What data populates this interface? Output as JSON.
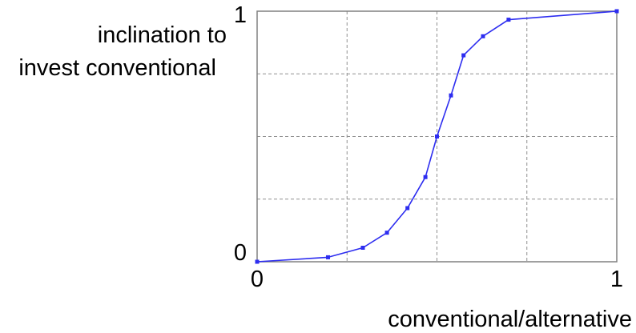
{
  "chart_data": {
    "type": "line",
    "title": "",
    "ylabel_lines": [
      "inclination to",
      "invest conventional"
    ],
    "xlabel": "conventional/alternative",
    "xlim": [
      0,
      1
    ],
    "ylim": [
      0,
      1
    ],
    "x_tick_labels": [
      "0",
      "1"
    ],
    "y_tick_labels": [
      "0",
      "1"
    ],
    "grid": true,
    "grid_style": "dashed",
    "series": [
      {
        "color": "#2d2df0",
        "marker": "square",
        "x": [
          0.0,
          0.197,
          0.294,
          0.361,
          0.418,
          0.468,
          0.5,
          0.539,
          0.574,
          0.628,
          0.699,
          1.0
        ],
        "y": [
          0.0,
          0.018,
          0.056,
          0.116,
          0.214,
          0.338,
          0.5,
          0.664,
          0.824,
          0.9,
          0.966,
          1.0
        ]
      }
    ]
  }
}
